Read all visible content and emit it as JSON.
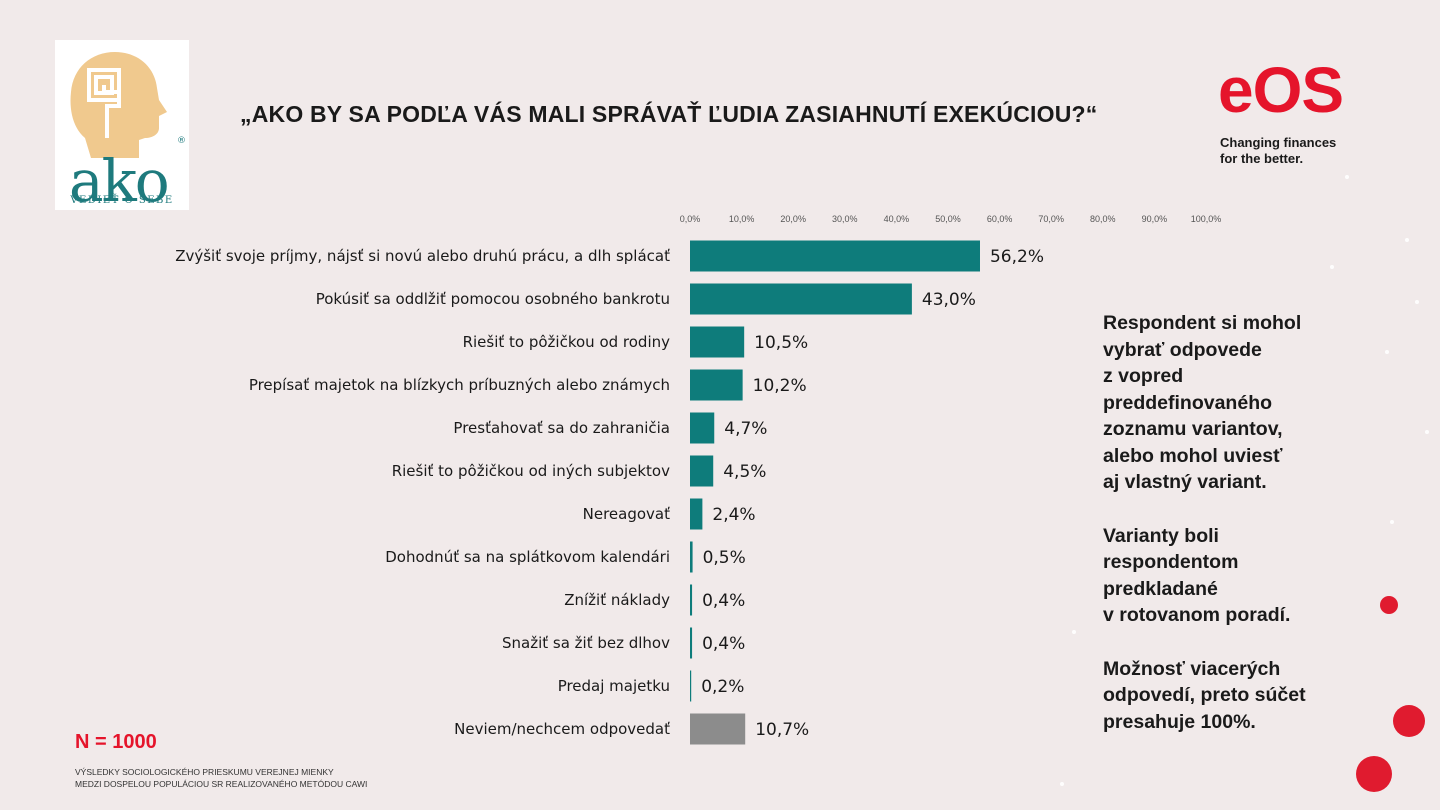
{
  "logo_ako": {
    "word": "ako",
    "registered": "®",
    "tagline": "VEDIEŤ O SEBE"
  },
  "title": "„AKO BY SA PODĽA VÁS MALI SPRÁVAŤ ĽUDIA ZASIAHNUTÍ EXEKÚCIOU?“",
  "logo_eos": {
    "word": "eOS",
    "tagline_line1": "Changing finances",
    "tagline_line2": "for the better."
  },
  "chart_data": {
    "type": "bar",
    "orientation": "horizontal",
    "title": "„AKO BY SA PODĽA VÁS MALI SPRÁVAŤ ĽUDIA ZASIAHNUTÍ EXEKÚCIOU?“",
    "xlabel": "",
    "ylabel": "",
    "xlim": [
      0,
      100
    ],
    "axis_ticks": [
      "0,0%",
      "10,0%",
      "20,0%",
      "30,0%",
      "40,0%",
      "50,0%",
      "60,0%",
      "70,0%",
      "80,0%",
      "90,0%",
      "100,0%"
    ],
    "categories": [
      "Zvýšiť svoje príjmy, nájsť si novú alebo druhú prácu, a dlh splácať",
      "Pokúsiť sa oddlžiť pomocou osobného bankrotu",
      "Riešiť to pôžičkou od rodiny",
      "Prepísať majetok na blízkych príbuzných alebo známych",
      "Presťahovať sa do zahraničia",
      "Riešiť to pôžičkou od iných subjektov",
      "Nereagovať",
      "Dohodnúť sa na splátkovom kalendári",
      "Znížiť náklady",
      "Snažiť sa žiť bez dlhov",
      "Predaj majetku",
      "Neviem/nechcem odpovedať"
    ],
    "values": [
      56.2,
      43.0,
      10.5,
      10.2,
      4.7,
      4.5,
      2.4,
      0.5,
      0.4,
      0.4,
      0.2,
      10.7
    ],
    "value_labels": [
      "56,2%",
      "43,0%",
      "10,5%",
      "10,2%",
      "4,7%",
      "4,5%",
      "2,4%",
      "0,5%",
      "0,4%",
      "0,4%",
      "0,2%",
      "10,7%"
    ],
    "bar_colors": [
      "#0e7c7b",
      "#0e7c7b",
      "#0e7c7b",
      "#0e7c7b",
      "#0e7c7b",
      "#0e7c7b",
      "#0e7c7b",
      "#0e7c7b",
      "#0e7c7b",
      "#0e7c7b",
      "#0e7c7b",
      "#8c8c8c"
    ],
    "grid": false,
    "legend": "none"
  },
  "note": {
    "p1": "Respondent si mohol\nvybrať odpovede\nz vopred\npreddefinovaného\nzoznamu variantov,\nalebo mohol uviesť\naj vlastný variant.",
    "p2": "Varianty boli\nrespondentom\npredkladané\nv rotovanom poradí.",
    "p3": "Možnosť viacerých\nodpovedí, preto súčet\npresahuje 100%."
  },
  "sample_size": "N = 1000",
  "source": {
    "line1": "Výsledky sociologického prieskumu verejnej mienky",
    "line2": "medzi dospelou populáciou SR realizovaného metódou CAWI"
  },
  "colors": {
    "accent_red": "#e5142b",
    "bar_teal": "#0e7c7b",
    "bar_grey": "#8c8c8c",
    "ako_teal": "#1e7a7d",
    "background": "#f1eaea"
  }
}
